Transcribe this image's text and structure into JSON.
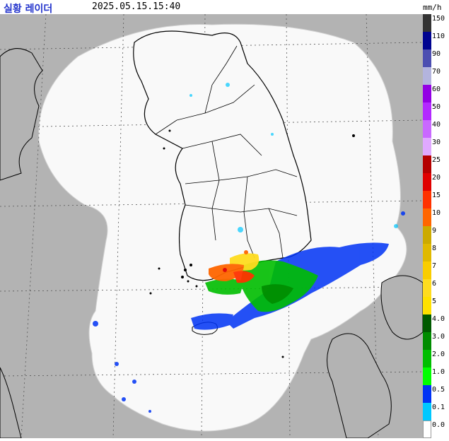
{
  "header": {
    "title": "실황 레이더",
    "timestamp": "2025.05.15.15:40",
    "unit": "mm/h"
  },
  "legend": {
    "levels": [
      {
        "label": "150",
        "color": "#333333"
      },
      {
        "label": "110",
        "color": "#000390"
      },
      {
        "label": "90",
        "color": "#4c4eb1"
      },
      {
        "label": "70",
        "color": "#b3b4de"
      },
      {
        "label": "60",
        "color": "#9300e4"
      },
      {
        "label": "50",
        "color": "#b329ff"
      },
      {
        "label": "40",
        "color": "#c969ff"
      },
      {
        "label": "30",
        "color": "#e0a9ff"
      },
      {
        "label": "25",
        "color": "#b40000"
      },
      {
        "label": "20",
        "color": "#e00000"
      },
      {
        "label": "15",
        "color": "#ff3200"
      },
      {
        "label": "10",
        "color": "#ff6600"
      },
      {
        "label": "9",
        "color": "#ccaa00"
      },
      {
        "label": "8",
        "color": "#e0b900"
      },
      {
        "label": "7",
        "color": "#f9cd00"
      },
      {
        "label": "6",
        "color": "#ffdc1f"
      },
      {
        "label": "5",
        "color": "#ffe100"
      },
      {
        "label": "4.0",
        "color": "#005a00"
      },
      {
        "label": "3.0",
        "color": "#008c00"
      },
      {
        "label": "2.0",
        "color": "#00be00"
      },
      {
        "label": "1.0",
        "color": "#00ff00"
      },
      {
        "label": "0.5",
        "color": "#0033f5"
      },
      {
        "label": "0.1",
        "color": "#00c8ff"
      },
      {
        "label": "0.0",
        "color": "#ffffff"
      }
    ]
  },
  "map": {
    "background_color": "#b3b3b3",
    "coverage_color": "#f9f9f9",
    "coastline_color": "#000000",
    "gridline_color": "#333333"
  }
}
